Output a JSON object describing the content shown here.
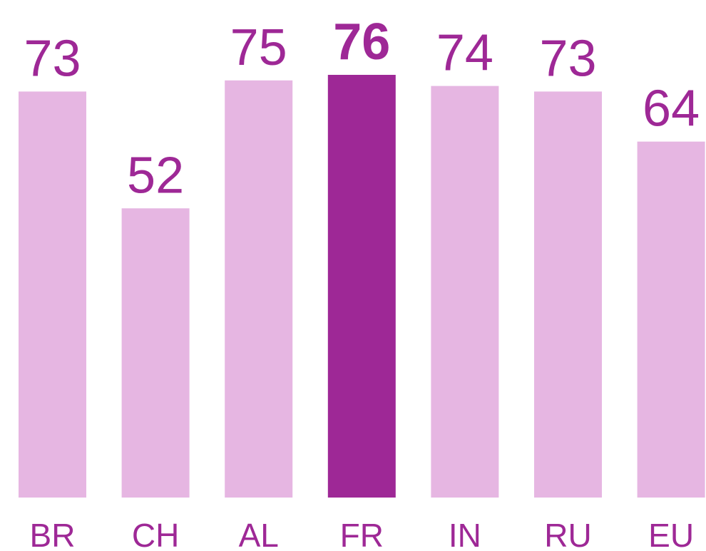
{
  "chart_data": {
    "type": "bar",
    "categories": [
      "BR",
      "CH",
      "AL",
      "FR",
      "IN",
      "RU",
      "EU"
    ],
    "values": [
      73,
      52,
      75,
      76,
      74,
      73,
      64
    ],
    "color": "#e6b6e2",
    "highlight_color": "#9e2896",
    "label_color": "#9e2896",
    "highlight": "FR"
  }
}
